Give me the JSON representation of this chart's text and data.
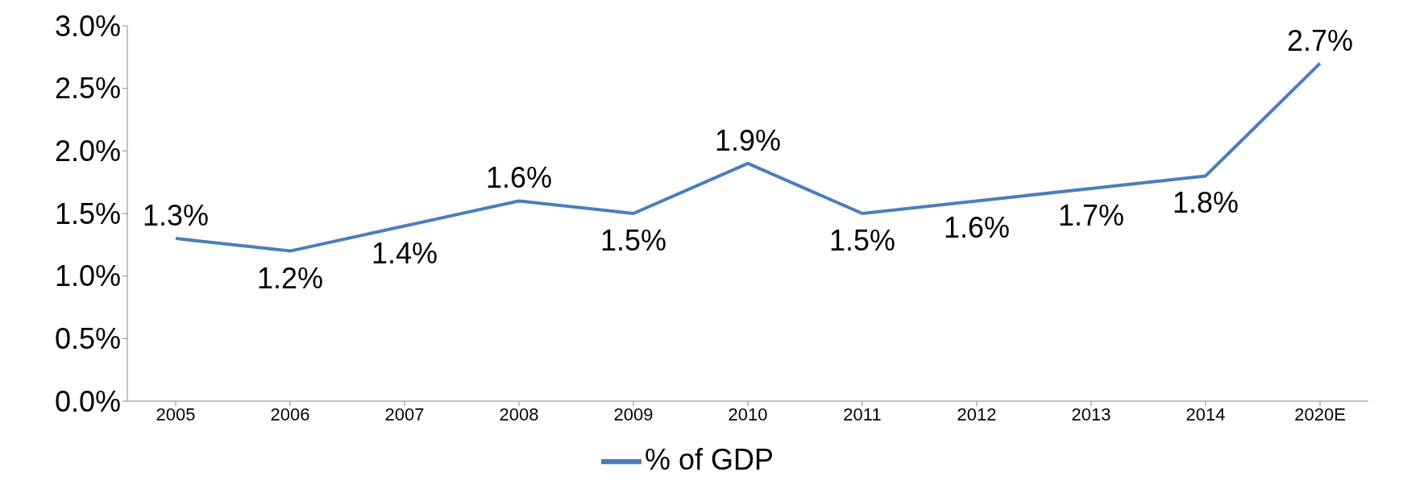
{
  "chart_data": {
    "type": "line",
    "categories": [
      "2005",
      "2006",
      "2007",
      "2008",
      "2009",
      "2010",
      "2011",
      "2012",
      "2013",
      "2014",
      "2020E"
    ],
    "series": [
      {
        "name": "% of GDP",
        "color": "#4a7ebb",
        "values": [
          1.3,
          1.2,
          1.4,
          1.6,
          1.5,
          1.9,
          1.5,
          1.6,
          1.7,
          1.8,
          2.7
        ],
        "value_labels": [
          "1.3%",
          "1.2%",
          "1.4%",
          "1.6%",
          "1.5%",
          "1.9%",
          "1.5%",
          "1.6%",
          "1.7%",
          "1.8%",
          "2.7%"
        ]
      }
    ],
    "ylim": [
      0,
      3
    ],
    "yticks": [
      {
        "value": 0,
        "label": "0.0%"
      },
      {
        "value": 0.5,
        "label": "0.5%"
      },
      {
        "value": 1,
        "label": "1.0%"
      },
      {
        "value": 1.5,
        "label": "1.5%"
      },
      {
        "value": 2,
        "label": "2.0%"
      },
      {
        "value": 2.5,
        "label": "2.5%"
      },
      {
        "value": 3,
        "label": "3.0%"
      }
    ],
    "grid": false,
    "legend": "bottom",
    "marker": "none",
    "line_style": "solid"
  }
}
